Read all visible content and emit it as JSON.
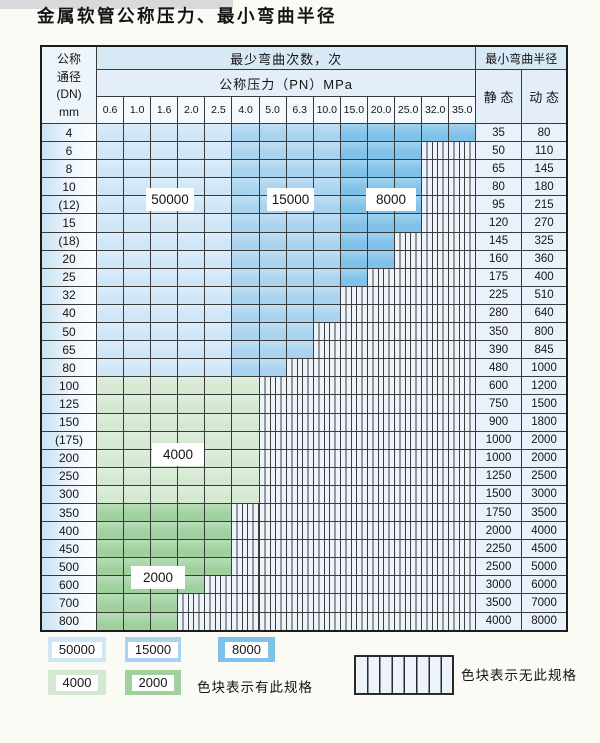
{
  "title": "金属软管公称压力、最小弯曲半径",
  "colors": {
    "c50000": "#cfe6f7",
    "c15000": "#a9d3ef",
    "c8000": "#7ec1e9",
    "c4000": "#d4e8d2",
    "c2000": "#9fd09e",
    "striped_bg": "#ecf3fa",
    "grid_line": "#3a3a3a"
  },
  "table": {
    "header": {
      "dn_lines": [
        "公称",
        "通径",
        "(DN)",
        "mm"
      ],
      "bend_cycles_label": "最少弯曲次数，次",
      "pressure_label": "公称压力（PN）MPa",
      "radius_label": "最小弯曲半径",
      "static_label": "静 态",
      "dynamic_label": "动 态",
      "pressure_columns": [
        "0.6",
        "1.0",
        "1.6",
        "2.0",
        "2.5",
        "4.0",
        "5.0",
        "6.3",
        "10.0",
        "15.0",
        "20.0",
        "25.0",
        "32.0",
        "35.0"
      ]
    },
    "blue_column_bands": [
      {
        "from": 0,
        "to": 4,
        "cycles": "50000"
      },
      {
        "from": 5,
        "to": 8,
        "cycles": "15000"
      },
      {
        "from": 9,
        "to": 13,
        "cycles": "8000"
      }
    ],
    "rows": [
      {
        "dn": "4",
        "static": "35",
        "dynamic": "80",
        "zone": "blue",
        "colored_cols": 14
      },
      {
        "dn": "6",
        "static": "50",
        "dynamic": "110",
        "zone": "blue",
        "colored_cols": 12
      },
      {
        "dn": "8",
        "static": "65",
        "dynamic": "145",
        "zone": "blue",
        "colored_cols": 12
      },
      {
        "dn": "10",
        "static": "80",
        "dynamic": "180",
        "zone": "blue",
        "colored_cols": 12
      },
      {
        "dn": "(12)",
        "static": "95",
        "dynamic": "215",
        "zone": "blue",
        "colored_cols": 12
      },
      {
        "dn": "15",
        "static": "120",
        "dynamic": "270",
        "zone": "blue",
        "colored_cols": 12
      },
      {
        "dn": "(18)",
        "static": "145",
        "dynamic": "325",
        "zone": "blue",
        "colored_cols": 11
      },
      {
        "dn": "20",
        "static": "160",
        "dynamic": "360",
        "zone": "blue",
        "colored_cols": 11
      },
      {
        "dn": "25",
        "static": "175",
        "dynamic": "400",
        "zone": "blue",
        "colored_cols": 10
      },
      {
        "dn": "32",
        "static": "225",
        "dynamic": "510",
        "zone": "blue",
        "colored_cols": 9
      },
      {
        "dn": "40",
        "static": "280",
        "dynamic": "640",
        "zone": "blue",
        "colored_cols": 9
      },
      {
        "dn": "50",
        "static": "350",
        "dynamic": "800",
        "zone": "blue",
        "colored_cols": 8
      },
      {
        "dn": "65",
        "static": "390",
        "dynamic": "845",
        "zone": "blue",
        "colored_cols": 8
      },
      {
        "dn": "80",
        "static": "480",
        "dynamic": "1000",
        "zone": "blue",
        "colored_cols": 7
      },
      {
        "dn": "100",
        "static": "600",
        "dynamic": "1200",
        "zone": "4000",
        "colored_cols": 6
      },
      {
        "dn": "125",
        "static": "750",
        "dynamic": "1500",
        "zone": "4000",
        "colored_cols": 6
      },
      {
        "dn": "150",
        "static": "900",
        "dynamic": "1800",
        "zone": "4000",
        "colored_cols": 6
      },
      {
        "dn": "(175)",
        "static": "1000",
        "dynamic": "2000",
        "zone": "4000",
        "colored_cols": 6
      },
      {
        "dn": "200",
        "static": "1000",
        "dynamic": "2000",
        "zone": "4000",
        "colored_cols": 6
      },
      {
        "dn": "250",
        "static": "1250",
        "dynamic": "2500",
        "zone": "4000",
        "colored_cols": 6
      },
      {
        "dn": "300",
        "static": "1500",
        "dynamic": "3000",
        "zone": "4000",
        "colored_cols": 6
      },
      {
        "dn": "350",
        "static": "1750",
        "dynamic": "3500",
        "zone": "2000",
        "colored_cols": 5
      },
      {
        "dn": "400",
        "static": "2000",
        "dynamic": "4000",
        "zone": "2000",
        "colored_cols": 5
      },
      {
        "dn": "450",
        "static": "2250",
        "dynamic": "4500",
        "zone": "2000",
        "colored_cols": 5
      },
      {
        "dn": "500",
        "static": "2500",
        "dynamic": "5000",
        "zone": "2000",
        "colored_cols": 5
      },
      {
        "dn": "600",
        "static": "3000",
        "dynamic": "6000",
        "zone": "2000",
        "colored_cols": 4
      },
      {
        "dn": "700",
        "static": "3500",
        "dynamic": "7000",
        "zone": "2000",
        "colored_cols": 3
      },
      {
        "dn": "800",
        "static": "4000",
        "dynamic": "8000",
        "zone": "2000",
        "colored_cols": 3
      }
    ]
  },
  "overlay_labels": {
    "b50000": "50000",
    "b15000": "15000",
    "b8000": "8000",
    "g4000": "4000",
    "g2000": "2000"
  },
  "legend": {
    "items": [
      {
        "label": "50000"
      },
      {
        "label": "15000"
      },
      {
        "label": "8000"
      },
      {
        "label": "4000"
      },
      {
        "label": "2000"
      }
    ],
    "has_spec_text": "色块表示有此规格",
    "no_spec_text": "色块表示无此规格"
  }
}
